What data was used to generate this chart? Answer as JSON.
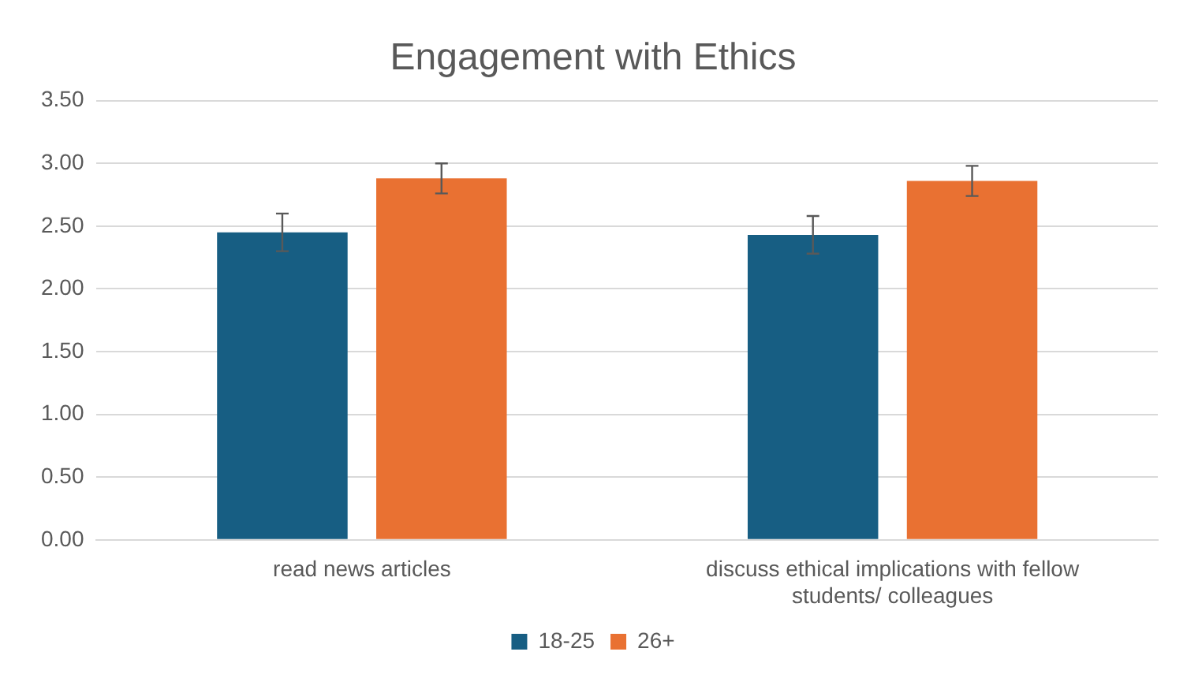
{
  "chart_data": {
    "type": "bar",
    "title": "Engagement with Ethics",
    "categories": [
      "read news articles",
      "discuss ethical implications with fellow students/ colleagues"
    ],
    "series": [
      {
        "name": "18-25",
        "color": "#175e83",
        "values": [
          2.45,
          2.43
        ],
        "errors": [
          0.15,
          0.15
        ]
      },
      {
        "name": "26+",
        "color": "#e97132",
        "values": [
          2.88,
          2.86
        ],
        "errors": [
          0.12,
          0.12
        ]
      }
    ],
    "ylim": [
      0,
      3.5
    ],
    "yticks": [
      {
        "value": 0,
        "label": "0.00"
      },
      {
        "value": 0.5,
        "label": "0.50"
      },
      {
        "value": 1,
        "label": "1.00"
      },
      {
        "value": 1.5,
        "label": "1.50"
      },
      {
        "value": 2,
        "label": "2.00"
      },
      {
        "value": 2.5,
        "label": "2.50"
      },
      {
        "value": 3,
        "label": "3.00"
      },
      {
        "value": 3.5,
        "label": "3.50"
      }
    ],
    "grid": "y",
    "legend": "bottom"
  }
}
